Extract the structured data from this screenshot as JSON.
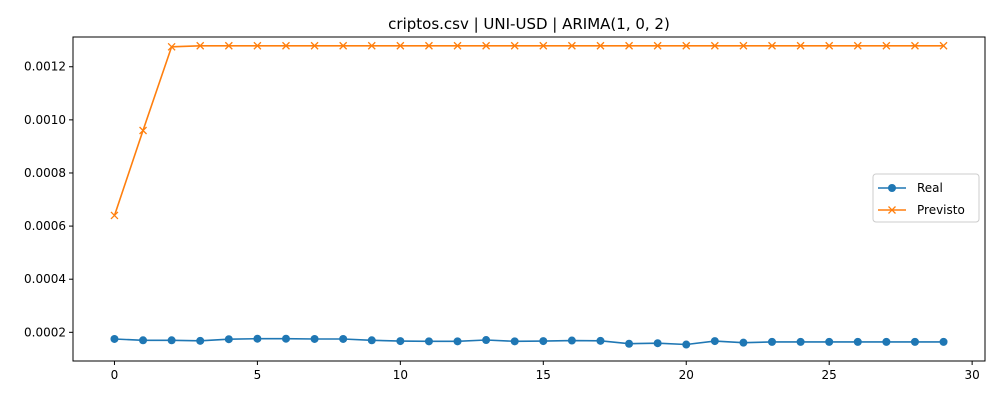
{
  "chart_data": {
    "type": "line",
    "title": "criptos.csv | UNI-USD | ARIMA(1, 0, 2)",
    "xlabel": "",
    "ylabel": "",
    "xlim": [
      -1.45,
      30.45
    ],
    "ylim": [
      9.2e-05,
      0.001312
    ],
    "xticks": [
      0,
      5,
      10,
      15,
      20,
      25,
      30
    ],
    "xtick_labels": [
      "0",
      "5",
      "10",
      "15",
      "20",
      "25",
      "30"
    ],
    "yticks": [
      0.0002,
      0.0004,
      0.0006,
      0.0008,
      0.001,
      0.0012
    ],
    "ytick_labels": [
      "0.0002",
      "0.0004",
      "0.0006",
      "0.0008",
      "0.0010",
      "0.0012"
    ],
    "grid": false,
    "legend_position": "right",
    "x": [
      0,
      1,
      2,
      3,
      4,
      5,
      6,
      7,
      8,
      9,
      10,
      11,
      12,
      13,
      14,
      15,
      16,
      17,
      18,
      19,
      20,
      21,
      22,
      23,
      24,
      25,
      26,
      27,
      28,
      29
    ],
    "series": [
      {
        "name": "Real",
        "color": "#1f77b4",
        "marker": "circle",
        "values": [
          0.000175,
          0.00017,
          0.00017,
          0.000168,
          0.000174,
          0.000176,
          0.000176,
          0.000175,
          0.000175,
          0.00017,
          0.000167,
          0.000166,
          0.000166,
          0.000171,
          0.000166,
          0.000167,
          0.000169,
          0.000168,
          0.000157,
          0.000159,
          0.000154,
          0.000167,
          0.000161,
          0.000164,
          0.000164,
          0.000164,
          0.000164,
          0.000164,
          0.000164,
          0.000164
        ]
      },
      {
        "name": "Previsto",
        "color": "#ff7f0e",
        "marker": "x",
        "values": [
          0.00064,
          0.00096,
          0.001275,
          0.001279,
          0.001279,
          0.001279,
          0.001279,
          0.001279,
          0.001279,
          0.001279,
          0.001279,
          0.001279,
          0.001279,
          0.001279,
          0.001279,
          0.001279,
          0.001279,
          0.001279,
          0.001279,
          0.001279,
          0.001279,
          0.001279,
          0.001279,
          0.001279,
          0.001279,
          0.001279,
          0.001279,
          0.001279,
          0.001279,
          0.001279
        ]
      }
    ]
  }
}
